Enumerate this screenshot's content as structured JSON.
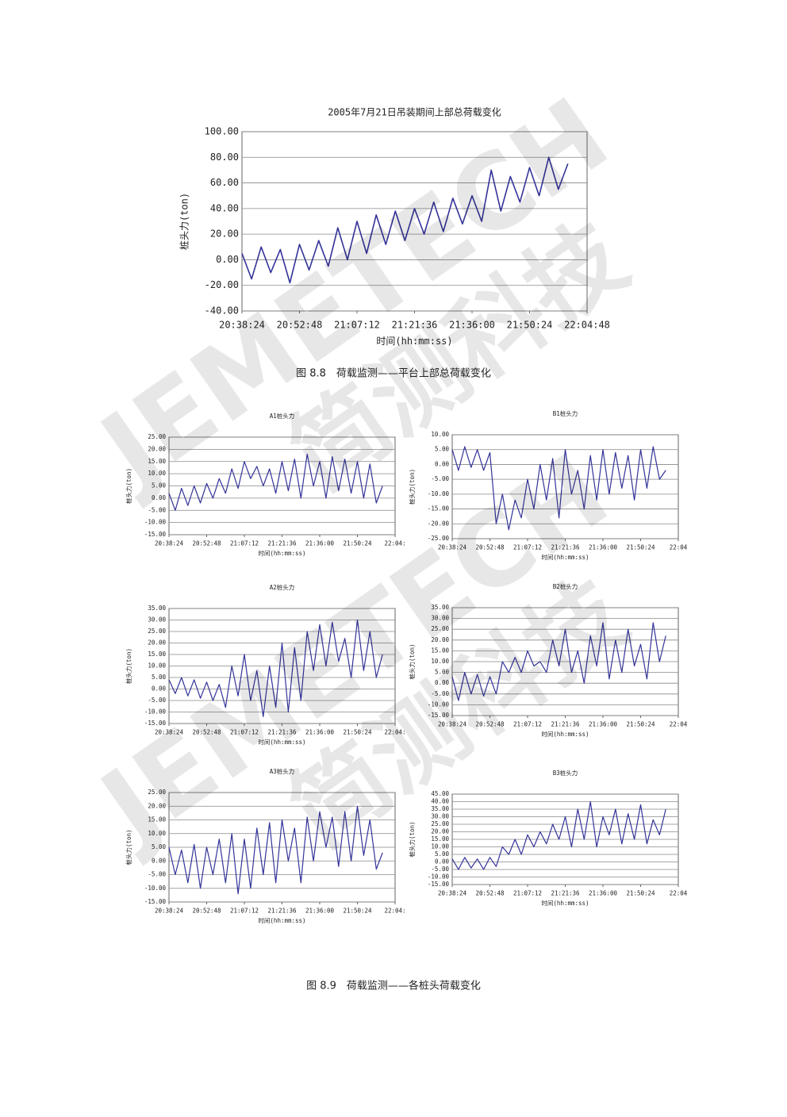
{
  "captions": [
    "图 8.8　荷载监测——平台上部总荷载变化",
    "图 8.9　荷载监测——各桩头荷载变化"
  ],
  "watermark": [
    "JEMETECH",
    "简测科技"
  ],
  "chart_data": [
    {
      "type": "line",
      "title": "2005年7月21日吊装期间上部总荷载变化",
      "xlabel": "时间(hh:mm:ss)",
      "ylabel": "桩头力(ton)",
      "color": "#333399",
      "grid": true,
      "x": [
        "20:38:24",
        "20:40:48",
        "20:43:12",
        "20:45:36",
        "20:48:00",
        "20:50:24",
        "20:52:48",
        "20:55:12",
        "20:57:36",
        "21:00:00",
        "21:02:24",
        "21:04:48",
        "21:07:12",
        "21:09:36",
        "21:12:00",
        "21:14:24",
        "21:16:48",
        "21:19:12",
        "21:21:36",
        "21:24:00",
        "21:26:24",
        "21:28:48",
        "21:31:12",
        "21:33:36",
        "21:36:00",
        "21:38:24",
        "21:40:48",
        "21:43:12",
        "21:45:36",
        "21:48:00",
        "21:50:24",
        "21:52:48",
        "21:55:12",
        "21:57:36",
        "22:00:00"
      ],
      "values": [
        5,
        -15,
        10,
        -10,
        8,
        -18,
        12,
        -8,
        15,
        -5,
        25,
        0,
        30,
        5,
        35,
        12,
        38,
        15,
        40,
        20,
        45,
        22,
        48,
        28,
        50,
        30,
        70,
        38,
        65,
        45,
        72,
        50,
        80,
        55,
        75
      ],
      "xlim": [
        "20:38:24",
        "22:04:48"
      ],
      "xticks": [
        "20:38:24",
        "20:52:48",
        "21:07:12",
        "21:21:36",
        "21:36:00",
        "21:50:24",
        "22:04:48"
      ],
      "ylim": [
        -40,
        100
      ],
      "yticks": [
        {
          "value": -40,
          "label": "-40.00"
        },
        {
          "value": -20,
          "label": "-20.00"
        },
        {
          "value": 0,
          "label": "0.00"
        },
        {
          "value": 20,
          "label": "20.00"
        },
        {
          "value": 40,
          "label": "40.00"
        },
        {
          "value": 60,
          "label": "60.00"
        },
        {
          "value": 80,
          "label": "80.00"
        },
        {
          "value": 100,
          "label": "100.00"
        }
      ]
    },
    {
      "type": "line",
      "title": "A1桩头力",
      "xlabel": "时间(hh:mm:ss)",
      "ylabel": "桩头力(ton)",
      "color": "#333399",
      "grid": true,
      "x": [
        "20:38:24",
        "20:40:48",
        "20:43:12",
        "20:45:36",
        "20:48:00",
        "20:50:24",
        "20:52:48",
        "20:55:12",
        "20:57:36",
        "21:00:00",
        "21:02:24",
        "21:04:48",
        "21:07:12",
        "21:09:36",
        "21:12:00",
        "21:14:24",
        "21:16:48",
        "21:19:12",
        "21:21:36",
        "21:24:00",
        "21:26:24",
        "21:28:48",
        "21:31:12",
        "21:33:36",
        "21:36:00",
        "21:38:24",
        "21:40:48",
        "21:43:12",
        "21:45:36",
        "21:48:00",
        "21:50:24",
        "21:52:48",
        "21:55:12",
        "21:57:36",
        "22:00:00"
      ],
      "values": [
        2,
        -5,
        4,
        -3,
        5,
        -2,
        6,
        0,
        8,
        2,
        12,
        4,
        15,
        8,
        13,
        5,
        12,
        2,
        15,
        3,
        16,
        0,
        18,
        5,
        15,
        0,
        17,
        3,
        16,
        2,
        15,
        0,
        14,
        -2,
        5
      ],
      "xlim": [
        "20:38:24",
        "22:04:48"
      ],
      "xticks": [
        "20:38:24",
        "20:52:48",
        "21:07:12",
        "21:21:36",
        "21:36:00",
        "21:50:24",
        {
          "value": "22:04:48",
          "label": "22:04:"
        }
      ],
      "ylim": [
        -15,
        25
      ],
      "yticks": [
        {
          "value": -15,
          "label": "-15.00"
        },
        {
          "value": -10,
          "label": "-10.00"
        },
        {
          "value": -5,
          "label": "-5.00"
        },
        {
          "value": 0,
          "label": "0.00"
        },
        {
          "value": 5,
          "label": "5.00"
        },
        {
          "value": 10,
          "label": "10.00"
        },
        {
          "value": 15,
          "label": "15.00"
        },
        {
          "value": 20,
          "label": "20.00"
        },
        {
          "value": 25,
          "label": "25.00"
        }
      ]
    },
    {
      "type": "line",
      "title": "B1桩头力",
      "xlabel": "时间(hh:mm:ss)",
      "ylabel": "桩头力(ton)",
      "color": "#333399",
      "grid": true,
      "x": [
        "20:38:24",
        "20:40:48",
        "20:43:12",
        "20:45:36",
        "20:48:00",
        "20:50:24",
        "20:52:48",
        "20:55:12",
        "20:57:36",
        "21:00:00",
        "21:02:24",
        "21:04:48",
        "21:07:12",
        "21:09:36",
        "21:12:00",
        "21:14:24",
        "21:16:48",
        "21:19:12",
        "21:21:36",
        "21:24:00",
        "21:26:24",
        "21:28:48",
        "21:31:12",
        "21:33:36",
        "21:36:00",
        "21:38:24",
        "21:40:48",
        "21:43:12",
        "21:45:36",
        "21:48:00",
        "21:50:24",
        "21:52:48",
        "21:55:12",
        "21:57:36",
        "22:00:00"
      ],
      "values": [
        5,
        -2,
        6,
        -1,
        5,
        -2,
        4,
        -20,
        -10,
        -22,
        -12,
        -18,
        -5,
        -15,
        0,
        -12,
        2,
        -18,
        5,
        -10,
        -2,
        -15,
        3,
        -12,
        5,
        -10,
        4,
        -8,
        3,
        -12,
        5,
        -8,
        6,
        -5,
        -2
      ],
      "xlim": [
        "20:38:24",
        "22:04:48"
      ],
      "xticks": [
        "20:38:24",
        "20:52:48",
        "21:07:12",
        "21:21:36",
        "21:36:00",
        "21:50:24",
        {
          "value": "22:04:48",
          "label": "22:04"
        }
      ],
      "ylim": [
        -25,
        10
      ],
      "yticks": [
        {
          "value": -25,
          "label": "-25.00"
        },
        {
          "value": -20,
          "label": "-20.00"
        },
        {
          "value": -15,
          "label": "-15.00"
        },
        {
          "value": -10,
          "label": "-10.00"
        },
        {
          "value": -5,
          "label": "-5.00"
        },
        {
          "value": 0,
          "label": "0.00"
        },
        {
          "value": 5,
          "label": "5.00"
        },
        {
          "value": 10,
          "label": "10.00"
        }
      ]
    },
    {
      "type": "line",
      "title": "A2桩头力",
      "xlabel": "时间(hh:mm:ss)",
      "ylabel": "桩头力(ton)",
      "color": "#333399",
      "grid": true,
      "x": [
        "20:38:24",
        "20:40:48",
        "20:43:12",
        "20:45:36",
        "20:48:00",
        "20:50:24",
        "20:52:48",
        "20:55:12",
        "20:57:36",
        "21:00:00",
        "21:02:24",
        "21:04:48",
        "21:07:12",
        "21:09:36",
        "21:12:00",
        "21:14:24",
        "21:16:48",
        "21:19:12",
        "21:21:36",
        "21:24:00",
        "21:26:24",
        "21:28:48",
        "21:31:12",
        "21:33:36",
        "21:36:00",
        "21:38:24",
        "21:40:48",
        "21:43:12",
        "21:45:36",
        "21:48:00",
        "21:50:24",
        "21:52:48",
        "21:55:12",
        "21:57:36",
        "22:00:00"
      ],
      "values": [
        4,
        -2,
        5,
        -3,
        4,
        -4,
        3,
        -5,
        2,
        -8,
        10,
        -3,
        15,
        -5,
        8,
        -12,
        10,
        -8,
        20,
        -10,
        18,
        -5,
        25,
        8,
        28,
        10,
        29,
        12,
        22,
        5,
        30,
        8,
        25,
        5,
        15
      ],
      "xlim": [
        "20:38:24",
        "22:04:48"
      ],
      "xticks": [
        "20:38:24",
        "20:52:48",
        "21:07:12",
        "21:21:36",
        "21:36:00",
        "21:50:24",
        {
          "value": "22:04:48",
          "label": "22:04:"
        }
      ],
      "ylim": [
        -15,
        35
      ],
      "yticks": [
        {
          "value": -15,
          "label": "-15.00"
        },
        {
          "value": -10,
          "label": "-10.00"
        },
        {
          "value": -5,
          "label": "-5.00"
        },
        {
          "value": 0,
          "label": "0.00"
        },
        {
          "value": 5,
          "label": "5.00"
        },
        {
          "value": 10,
          "label": "10.00"
        },
        {
          "value": 15,
          "label": "15.00"
        },
        {
          "value": 20,
          "label": "20.00"
        },
        {
          "value": 25,
          "label": "25.00"
        },
        {
          "value": 30,
          "label": "30.00"
        },
        {
          "value": 35,
          "label": "35.00"
        }
      ]
    },
    {
      "type": "line",
      "title": "B2桩头力",
      "xlabel": "时间(hh:mm:ss)",
      "ylabel": "桩头力(ton)",
      "color": "#333399",
      "grid": true,
      "x": [
        "20:38:24",
        "20:40:48",
        "20:43:12",
        "20:45:36",
        "20:48:00",
        "20:50:24",
        "20:52:48",
        "20:55:12",
        "20:57:36",
        "21:00:00",
        "21:02:24",
        "21:04:48",
        "21:07:12",
        "21:09:36",
        "21:12:00",
        "21:14:24",
        "21:16:48",
        "21:19:12",
        "21:21:36",
        "21:24:00",
        "21:26:24",
        "21:28:48",
        "21:31:12",
        "21:33:36",
        "21:36:00",
        "21:38:24",
        "21:40:48",
        "21:43:12",
        "21:45:36",
        "21:48:00",
        "21:50:24",
        "21:52:48",
        "21:55:12",
        "21:57:36",
        "22:00:00"
      ],
      "values": [
        3,
        -8,
        5,
        -5,
        4,
        -6,
        3,
        -5,
        10,
        5,
        12,
        5,
        15,
        8,
        10,
        5,
        20,
        8,
        25,
        5,
        15,
        0,
        22,
        8,
        28,
        2,
        20,
        5,
        25,
        8,
        18,
        2,
        28,
        10,
        22
      ],
      "xlim": [
        "20:38:24",
        "22:04:48"
      ],
      "xticks": [
        "20:38:24",
        "20:52:48",
        "21:07:12",
        "21:21:36",
        "21:36:00",
        "21:50:24",
        {
          "value": "22:04:48",
          "label": "22:04"
        }
      ],
      "ylim": [
        -15,
        35
      ],
      "yticks": [
        {
          "value": -15,
          "label": "-15.00"
        },
        {
          "value": -10,
          "label": "-10.00"
        },
        {
          "value": -5,
          "label": "-5.00"
        },
        {
          "value": 0,
          "label": "0.00"
        },
        {
          "value": 5,
          "label": "5.00"
        },
        {
          "value": 10,
          "label": "10.00"
        },
        {
          "value": 15,
          "label": "15.00"
        },
        {
          "value": 20,
          "label": "20.00"
        },
        {
          "value": 25,
          "label": "25.00"
        },
        {
          "value": 30,
          "label": "30.00"
        },
        {
          "value": 35,
          "label": "35.00"
        }
      ]
    },
    {
      "type": "line",
      "title": "A3桩头力",
      "xlabel": "时间(hh:mm:ss)",
      "ylabel": "桩头力(ton)",
      "color": "#333399",
      "grid": true,
      "x": [
        "20:38:24",
        "20:40:48",
        "20:43:12",
        "20:45:36",
        "20:48:00",
        "20:50:24",
        "20:52:48",
        "20:55:12",
        "20:57:36",
        "21:00:00",
        "21:02:24",
        "21:04:48",
        "21:07:12",
        "21:09:36",
        "21:12:00",
        "21:14:24",
        "21:16:48",
        "21:19:12",
        "21:21:36",
        "21:24:00",
        "21:26:24",
        "21:28:48",
        "21:31:12",
        "21:33:36",
        "21:36:00",
        "21:38:24",
        "21:40:48",
        "21:43:12",
        "21:45:36",
        "21:48:00",
        "21:50:24",
        "21:52:48",
        "21:55:12",
        "21:57:36",
        "22:00:00"
      ],
      "values": [
        5,
        -5,
        4,
        -8,
        6,
        -10,
        5,
        -5,
        8,
        -8,
        10,
        -12,
        8,
        -10,
        12,
        -5,
        14,
        -8,
        15,
        0,
        12,
        -8,
        16,
        0,
        18,
        5,
        16,
        -2,
        18,
        0,
        20,
        2,
        15,
        -3,
        3
      ],
      "xlim": [
        "20:38:24",
        "22:04:48"
      ],
      "xticks": [
        "20:38:24",
        "20:52:48",
        "21:07:12",
        "21:21:36",
        "21:36:00",
        "21:50:24",
        {
          "value": "22:04:48",
          "label": "22:04:"
        }
      ],
      "ylim": [
        -15,
        25
      ],
      "yticks": [
        {
          "value": -15,
          "label": "-15.00"
        },
        {
          "value": -10,
          "label": "-10.00"
        },
        {
          "value": -5,
          "label": "-5.00"
        },
        {
          "value": 0,
          "label": "0.00"
        },
        {
          "value": 5,
          "label": "5.00"
        },
        {
          "value": 10,
          "label": "10.00"
        },
        {
          "value": 15,
          "label": "15.00"
        },
        {
          "value": 20,
          "label": "20.00"
        },
        {
          "value": 25,
          "label": "25.00"
        }
      ]
    },
    {
      "type": "line",
      "title": "B3桩头力",
      "xlabel": "时间(hh:mm:ss)",
      "ylabel": "桩头力(ton)",
      "color": "#333399",
      "grid": true,
      "x": [
        "20:38:24",
        "20:40:48",
        "20:43:12",
        "20:45:36",
        "20:48:00",
        "20:50:24",
        "20:52:48",
        "20:55:12",
        "20:57:36",
        "21:00:00",
        "21:02:24",
        "21:04:48",
        "21:07:12",
        "21:09:36",
        "21:12:00",
        "21:14:24",
        "21:16:48",
        "21:19:12",
        "21:21:36",
        "21:24:00",
        "21:26:24",
        "21:28:48",
        "21:31:12",
        "21:33:36",
        "21:36:00",
        "21:38:24",
        "21:40:48",
        "21:43:12",
        "21:45:36",
        "21:48:00",
        "21:50:24",
        "21:52:48",
        "21:55:12",
        "21:57:36",
        "22:00:00"
      ],
      "values": [
        2,
        -5,
        3,
        -4,
        2,
        -5,
        3,
        -3,
        10,
        5,
        15,
        5,
        18,
        10,
        20,
        12,
        25,
        15,
        30,
        10,
        35,
        15,
        40,
        10,
        30,
        18,
        35,
        12,
        32,
        15,
        38,
        12,
        28,
        18,
        35
      ],
      "xlim": [
        "20:38:24",
        "22:04:48"
      ],
      "xticks": [
        "20:38:24",
        "20:52:48",
        "21:07:12",
        "21:21:36",
        "21:36:00",
        "21:50:24",
        {
          "value": "22:04:48",
          "label": "22:04"
        }
      ],
      "ylim": [
        -15,
        45
      ],
      "yticks": [
        {
          "value": -15,
          "label": "-15.00"
        },
        {
          "value": -10,
          "label": "-10.00"
        },
        {
          "value": -5,
          "label": "-5.00"
        },
        {
          "value": 0,
          "label": "0.00"
        },
        {
          "value": 5,
          "label": "5.00"
        },
        {
          "value": 10,
          "label": "10.00"
        },
        {
          "value": 15,
          "label": "15.00"
        },
        {
          "value": 20,
          "label": "20.00"
        },
        {
          "value": 25,
          "label": "25.00"
        },
        {
          "value": 30,
          "label": "30.00"
        },
        {
          "value": 35,
          "label": "35.00"
        },
        {
          "value": 40,
          "label": "40.00"
        },
        {
          "value": 45,
          "label": "45.00"
        }
      ]
    }
  ]
}
